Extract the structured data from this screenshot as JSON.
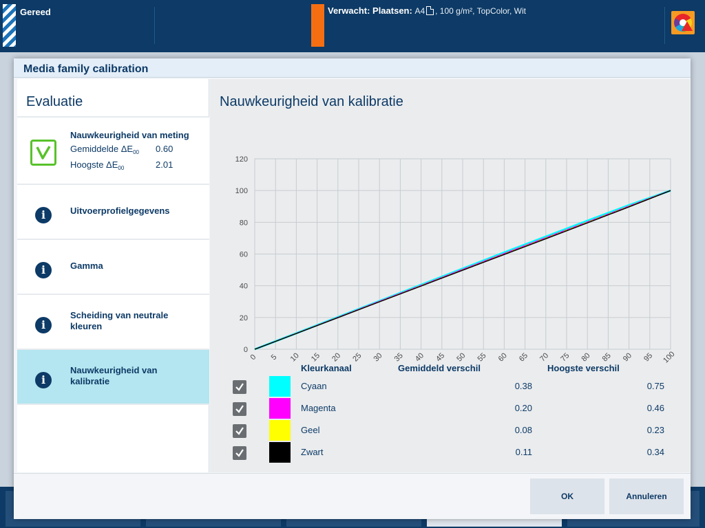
{
  "status_bar": {
    "state": "Gereed",
    "expected_label": "Verwacht: Plaatsen:",
    "media_size": "A4",
    "media_spec": ", 100 g/m², TopColor, Wit",
    "alert_icon": "color-wheel-warning-icon"
  },
  "dialog": {
    "title": "Media family calibration",
    "left_title": "Evaluatie",
    "items": [
      {
        "label": "Nauwkeurigheid van meting",
        "icon": "check-icon",
        "metrics": [
          {
            "label": "Gemiddelde ΔE",
            "sub": "00",
            "value": "0.60"
          },
          {
            "label": "Hoogste ΔE",
            "sub": "00",
            "value": "2.01"
          }
        ]
      },
      {
        "label": "Uitvoerprofielgegevens",
        "icon": "info-icon"
      },
      {
        "label": "Gamma",
        "icon": "info-icon"
      },
      {
        "label": "Scheiding van neutrale kleuren",
        "icon": "info-icon"
      },
      {
        "label": "Nauwkeurigheid van kalibratie",
        "icon": "info-icon",
        "selected": true
      }
    ],
    "right_title": "Nauwkeurigheid van kalibratie",
    "legend": {
      "headers": {
        "channel": "Kleurkanaal",
        "avg": "Gemiddeld verschil",
        "max": "Hoogste verschil"
      },
      "rows": [
        {
          "name": "Cyaan",
          "color": "#00ffff",
          "avg": "0.38",
          "max": "0.75",
          "checked": true
        },
        {
          "name": "Magenta",
          "color": "#ff00ff",
          "avg": "0.20",
          "max": "0.46",
          "checked": true
        },
        {
          "name": "Geel",
          "color": "#ffff00",
          "avg": "0.08",
          "max": "0.23",
          "checked": true
        },
        {
          "name": "Zwart",
          "color": "#000000",
          "avg": "0.11",
          "max": "0.34",
          "checked": true
        }
      ]
    },
    "buttons": {
      "ok": "OK",
      "cancel": "Annuleren"
    }
  },
  "chart_data": {
    "type": "line",
    "title": "Nauwkeurigheid van kalibratie",
    "xlabel": "",
    "ylabel": "",
    "xlim": [
      0,
      100
    ],
    "ylim": [
      0,
      120
    ],
    "x_ticks": [
      0,
      5,
      10,
      15,
      20,
      25,
      30,
      35,
      40,
      45,
      50,
      55,
      60,
      65,
      70,
      75,
      80,
      85,
      90,
      95,
      100
    ],
    "y_ticks": [
      0,
      20,
      40,
      60,
      80,
      100,
      120
    ],
    "grid": true,
    "x": [
      0,
      10,
      20,
      30,
      40,
      50,
      60,
      70,
      80,
      90,
      100
    ],
    "series": [
      {
        "name": "Cyaan",
        "color": "#00ffff",
        "values": [
          0,
          10.1,
          20.3,
          30.4,
          40.6,
          50.8,
          61.0,
          71.0,
          81.0,
          90.8,
          100
        ]
      },
      {
        "name": "Magenta",
        "color": "#ff00ff",
        "values": [
          0,
          10.0,
          20.1,
          30.2,
          40.2,
          50.3,
          60.3,
          70.3,
          80.2,
          90.2,
          100
        ]
      },
      {
        "name": "Geel",
        "color": "#b8b000",
        "values": [
          0,
          10.0,
          20.0,
          30.0,
          40.0,
          50.0,
          60.0,
          70.0,
          80.0,
          90.0,
          100
        ]
      },
      {
        "name": "Zwart",
        "color": "#000000",
        "values": [
          0,
          9.9,
          19.9,
          29.9,
          39.8,
          49.8,
          59.7,
          69.6,
          79.6,
          89.7,
          100
        ]
      }
    ]
  }
}
